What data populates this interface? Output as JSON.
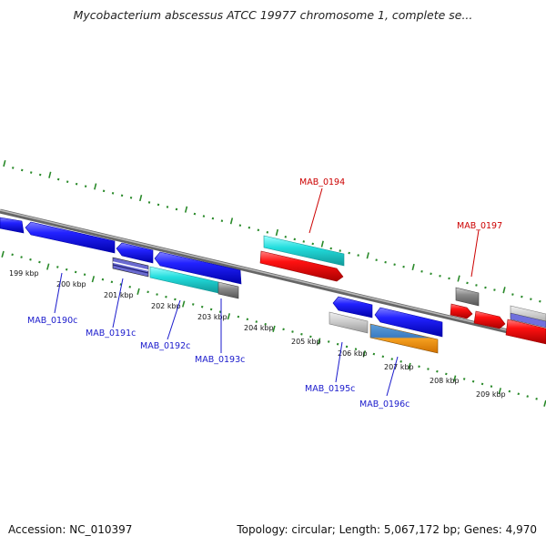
{
  "title": "Mycobacterium abscessus ATCC 19977 chromosome 1, complete se...",
  "footer": {
    "accession": "Accession: NC_010397",
    "summary": "Topology: circular; Length: 5,067,172 bp; Genes: 4,970"
  },
  "ruler": [
    {
      "label": "199 kbp"
    },
    {
      "label": "200 kbp"
    },
    {
      "label": "201 kbp"
    },
    {
      "label": "202 kbp"
    },
    {
      "label": "203 kbp"
    },
    {
      "label": "204 kbp"
    },
    {
      "label": "205 kbp"
    },
    {
      "label": "206 kbp"
    },
    {
      "label": "207 kbp"
    },
    {
      "label": "208 kbp"
    },
    {
      "label": "209 kbp"
    }
  ],
  "genes": [
    {
      "name": "MAB_0190c",
      "color": "#1a1acc"
    },
    {
      "name": "MAB_0191c",
      "color": "#1a1acc"
    },
    {
      "name": "MAB_0192c",
      "color": "#1a1acc"
    },
    {
      "name": "MAB_0193c",
      "color": "#1a1acc"
    },
    {
      "name": "MAB_0194",
      "color": "#cc0000"
    },
    {
      "name": "MAB_0195c",
      "color": "#1a1acc"
    },
    {
      "name": "MAB_0196c",
      "color": "#1a1acc"
    },
    {
      "name": "MAB_0197",
      "color": "#cc0000"
    }
  ],
  "colors": {
    "backbone": "#888888",
    "ticks": "#2a8a2a",
    "forward_cds": "#ee1111",
    "reverse_cds": "#1111ee",
    "cyan_track": "#22cccc",
    "grey_track": "#777777",
    "orange_track": "#f08c00"
  }
}
